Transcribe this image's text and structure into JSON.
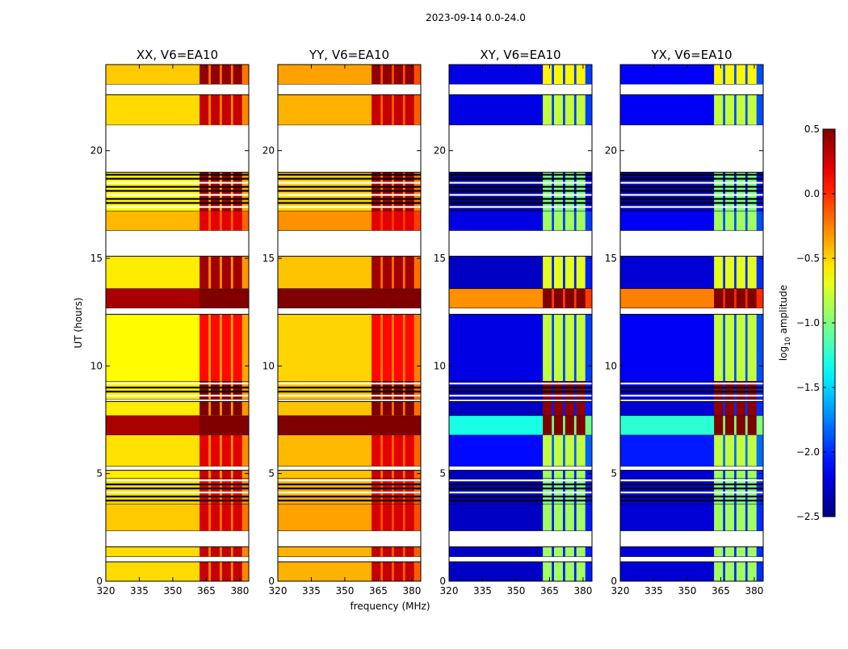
{
  "chart_data": {
    "type": "heatmap",
    "title": "2023-09-14 0.0-24.0",
    "xlabel": "frequency (MHz)",
    "ylabel": "UT (hours)",
    "xlim": [
      320,
      384
    ],
    "ylim": [
      0,
      24
    ],
    "xticks": [
      320,
      335,
      350,
      365,
      380
    ],
    "yticks": [
      0,
      5,
      10,
      15,
      20
    ],
    "colorbar": {
      "label": "log10 amplitude",
      "label_main": "log",
      "label_sub": "10",
      "label_rest": " amplitude",
      "range": [
        -2.5,
        0.5
      ],
      "ticks": [
        "0.5",
        "0.0",
        "−0.5",
        "−1.0",
        "−1.5",
        "−2.0",
        "−2.5"
      ],
      "tick_values": [
        0.5,
        0.0,
        -0.5,
        -1.0,
        -1.5,
        -2.0,
        -2.5
      ],
      "colormap": "jet"
    },
    "rfi_channels_mhz": [
      [
        362,
        366
      ],
      [
        367,
        371
      ],
      [
        372,
        376
      ],
      [
        377,
        381
      ]
    ],
    "panels": [
      {
        "title": "XX, V6=EA10",
        "profile": "parallel",
        "base_offset": -0.12
      },
      {
        "title": "YY, V6=EA10",
        "profile": "parallel",
        "base_offset": 0.0
      },
      {
        "title": "XY, V6=EA10",
        "profile": "cross",
        "base_offset": 0.0
      },
      {
        "title": "YX, V6=EA10",
        "profile": "cross",
        "base_offset": 0.05
      }
    ],
    "time_bands_hours": [
      {
        "start": 0.0,
        "end": 0.9,
        "kind": "data",
        "parallel": [
          -0.4,
          0.3
        ],
        "cross": [
          -2.3,
          -0.9
        ]
      },
      {
        "start": 0.9,
        "end": 1.15,
        "kind": "blank"
      },
      {
        "start": 1.15,
        "end": 1.6,
        "kind": "data",
        "parallel": [
          -0.4,
          0.3
        ],
        "cross": [
          -2.3,
          -0.9
        ]
      },
      {
        "start": 1.6,
        "end": 2.35,
        "kind": "blank"
      },
      {
        "start": 2.35,
        "end": 3.6,
        "kind": "data",
        "parallel": [
          -0.35,
          0.25
        ],
        "cross": [
          -2.3,
          -0.9
        ]
      },
      {
        "start": 3.6,
        "end": 4.8,
        "kind": "striped",
        "parallel": [
          -0.4,
          0.2
        ],
        "cross": [
          -2.3,
          -1.0
        ]
      },
      {
        "start": 4.8,
        "end": 5.15,
        "kind": "data",
        "parallel": [
          -0.45,
          0.3
        ],
        "cross": [
          -2.3,
          -0.9
        ]
      },
      {
        "start": 5.15,
        "end": 5.35,
        "kind": "blank"
      },
      {
        "start": 5.35,
        "end": 6.8,
        "kind": "data",
        "parallel": [
          -0.42,
          0.2
        ],
        "cross": [
          -2.1,
          -0.8
        ]
      },
      {
        "start": 6.8,
        "end": 7.7,
        "kind": "data",
        "parallel": [
          0.5,
          0.5
        ],
        "cross": [
          -1.3,
          0.5
        ]
      },
      {
        "start": 7.7,
        "end": 8.35,
        "kind": "data",
        "parallel": [
          -0.45,
          0.5
        ],
        "cross": [
          -2.3,
          0.45
        ]
      },
      {
        "start": 8.35,
        "end": 8.45,
        "kind": "blank"
      },
      {
        "start": 8.45,
        "end": 9.3,
        "kind": "striped",
        "parallel": [
          -0.45,
          0.5
        ],
        "cross": [
          -2.3,
          0.45
        ]
      },
      {
        "start": 9.3,
        "end": 12.4,
        "kind": "data",
        "parallel": [
          -0.5,
          0.1
        ],
        "cross": [
          -2.2,
          -0.8
        ]
      },
      {
        "start": 12.4,
        "end": 12.7,
        "kind": "blank"
      },
      {
        "start": 12.7,
        "end": 13.6,
        "kind": "data",
        "parallel": [
          0.5,
          0.5
        ],
        "cross": [
          -0.3,
          0.5
        ]
      },
      {
        "start": 13.6,
        "end": 15.1,
        "kind": "data",
        "parallel": [
          -0.45,
          0.4
        ],
        "cross": [
          -2.3,
          -0.7
        ]
      },
      {
        "start": 15.1,
        "end": 16.3,
        "kind": "blank"
      },
      {
        "start": 16.3,
        "end": 17.2,
        "kind": "data",
        "parallel": [
          -0.3,
          0.2
        ],
        "cross": [
          -2.2,
          -0.9
        ]
      },
      {
        "start": 17.2,
        "end": 19.0,
        "kind": "striped",
        "parallel": [
          -0.5,
          0.4
        ],
        "cross": [
          -2.4,
          -1.0
        ]
      },
      {
        "start": 19.0,
        "end": 21.2,
        "kind": "blank"
      },
      {
        "start": 21.2,
        "end": 22.6,
        "kind": "data",
        "parallel": [
          -0.4,
          0.3
        ],
        "cross": [
          -2.2,
          -0.8
        ]
      },
      {
        "start": 22.6,
        "end": 23.1,
        "kind": "blank"
      },
      {
        "start": 23.1,
        "end": 24.0,
        "kind": "data",
        "parallel": [
          -0.35,
          0.45
        ],
        "cross": [
          -2.2,
          -0.6
        ]
      }
    ]
  }
}
